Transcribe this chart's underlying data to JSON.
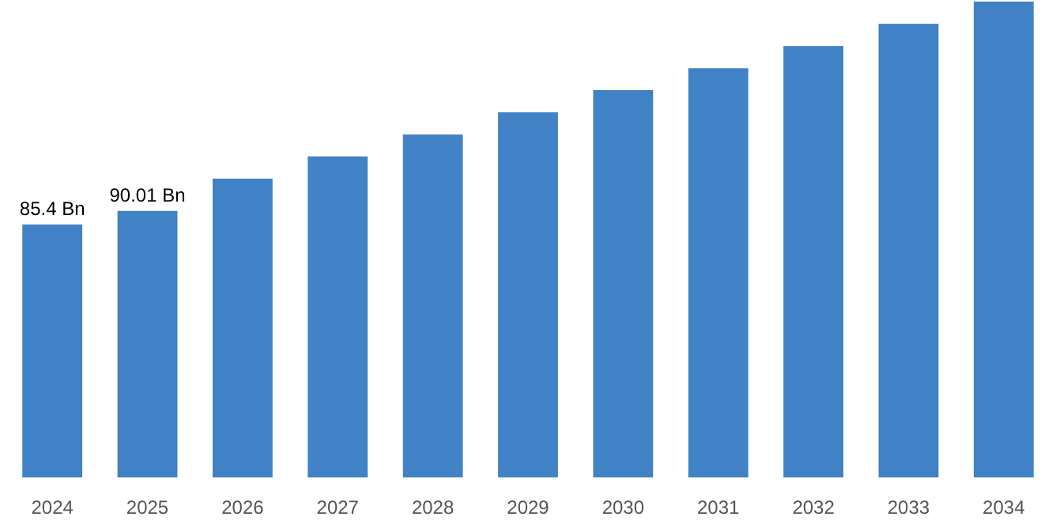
{
  "chart_data": {
    "type": "bar",
    "categories": [
      "2024",
      "2025",
      "2026",
      "2027",
      "2028",
      "2029",
      "2030",
      "2031",
      "2032",
      "2033",
      "2034"
    ],
    "values": [
      85.4,
      90.01,
      100.9,
      108.4,
      115.8,
      123.3,
      130.8,
      138.2,
      145.7,
      153.2,
      160.7
    ],
    "value_labels": [
      "85.4 Bn",
      "90.01 Bn",
      null,
      null,
      null,
      null,
      null,
      null,
      null,
      null,
      null
    ],
    "color": "#4182c6"
  }
}
